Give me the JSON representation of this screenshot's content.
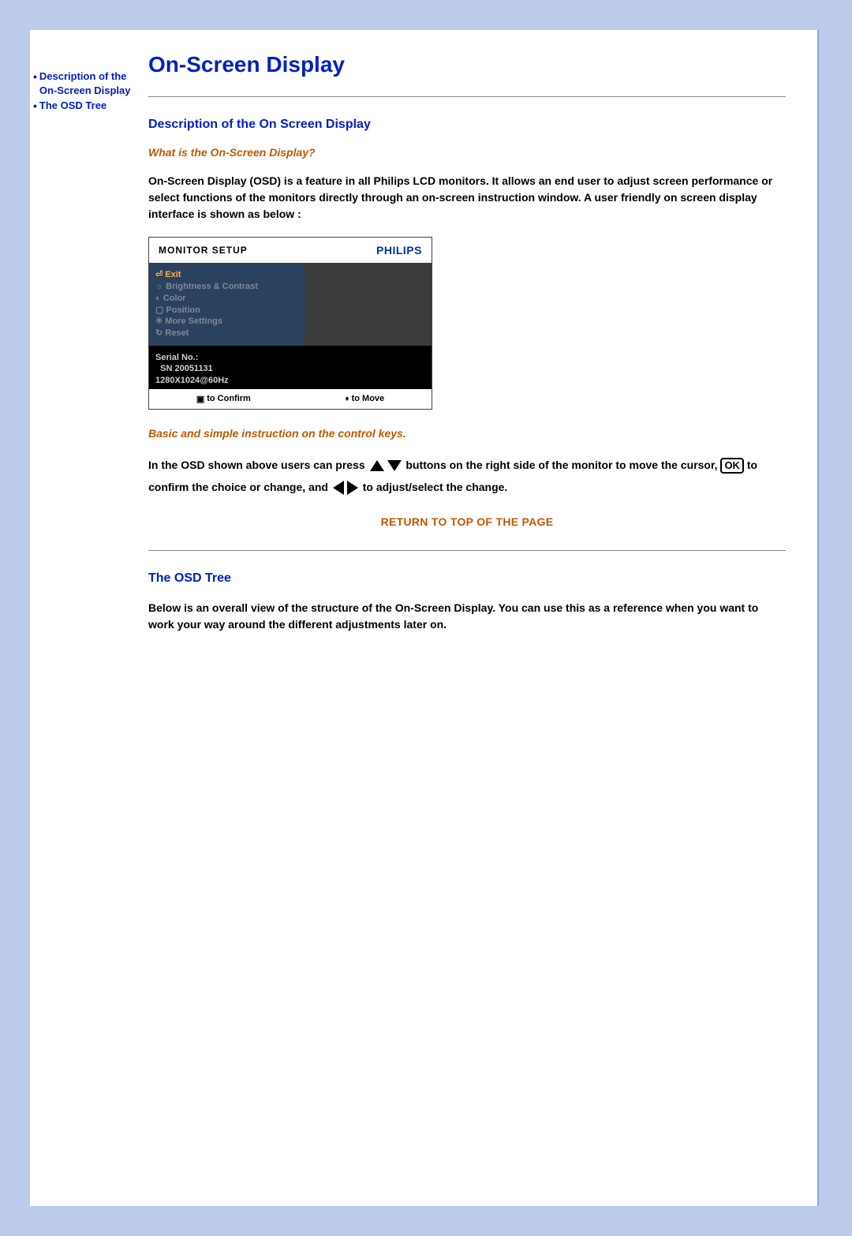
{
  "sidebar": {
    "items": [
      {
        "label": "Description of the On-Screen Display"
      },
      {
        "label": "The OSD Tree"
      }
    ]
  },
  "page": {
    "title": "On-Screen Display"
  },
  "section_desc": {
    "title": "Description of the On Screen Display",
    "question": "What is the On-Screen Display?",
    "body": "On-Screen Display (OSD) is a feature in all Philips LCD monitors. It allows an end user to adjust screen performance or select functions of the monitors directly through an on-screen instruction window. A user friendly on screen display interface is shown as below :"
  },
  "osd": {
    "header_title": "MONITOR SETUP",
    "brand": "PHILIPS",
    "menu": {
      "exit": "Exit",
      "items": [
        "Brightness & Contrast",
        "Color",
        "Position",
        "More Settings",
        "Reset"
      ]
    },
    "serial": {
      "label": "Serial No.:",
      "value": "SN 20051131",
      "resolution": "1280X1024@60Hz"
    },
    "footer": {
      "confirm": "to Confirm",
      "move": "to Move"
    }
  },
  "instructions": {
    "sub": "Basic and simple instruction on the control keys.",
    "part1": "In the OSD shown above users can press ",
    "part2": " buttons on the right side of the monitor to move the cursor,",
    "part3": " to confirm the choice or change, and ",
    "part4": " to adjust/select the change.",
    "ok": "OK"
  },
  "return_top": "RETURN TO TOP OF THE PAGE",
  "section_tree": {
    "title": "The OSD Tree",
    "body": "Below is an overall view of the structure of the On-Screen Display. You can use this as a reference when you want to work your way around the different adjustments later on."
  },
  "colors": {
    "page_bg": "#bdcceb",
    "link": "#0020c0",
    "accent": "#c05800",
    "osd_left": "#2a4260",
    "osd_right": "#3b3b3b",
    "brand": "#0033a0"
  }
}
